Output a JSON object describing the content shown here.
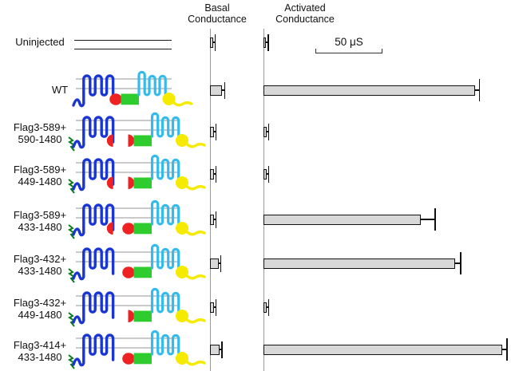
{
  "headers": {
    "basal_line1": "Basal",
    "basal_line2": "Conductance",
    "activated_line1": "Activated",
    "activated_line2": "Conductance"
  },
  "scale_bar": {
    "label": "50 μS",
    "value_uS": 50
  },
  "rows": [
    {
      "id": "uninjected",
      "label_lines": [
        "Uninjected"
      ],
      "cartoon": {
        "type": "membrane-only"
      },
      "basal": {
        "value_uS": 2.5,
        "error_uS": 1.5
      },
      "activated": {
        "value_uS": 2,
        "error_uS": 1.5
      }
    },
    {
      "id": "wt",
      "label_lines": [
        "WT"
      ],
      "cartoon": {
        "type": "construct",
        "flag_tag": false,
        "split": false,
        "nbd1_n_half": false,
        "nbd1_c_piece": "full"
      },
      "basal": {
        "value_uS": 9,
        "error_uS": 2
      },
      "activated": {
        "value_uS": 158,
        "error_uS": 3
      }
    },
    {
      "id": "flag3-589_590-1480",
      "label_lines": [
        "Flag3-589+",
        "590-1480"
      ],
      "cartoon": {
        "type": "construct",
        "flag_tag": true,
        "split": true,
        "nbd1_n_half": true,
        "nbd1_c_piece": "half"
      },
      "basal": {
        "value_uS": 3,
        "error_uS": 1.5
      },
      "activated": {
        "value_uS": 2.5,
        "error_uS": 1.5
      }
    },
    {
      "id": "flag3-589_449-1480",
      "label_lines": [
        "Flag3-589+",
        "449-1480"
      ],
      "cartoon": {
        "type": "construct",
        "flag_tag": true,
        "split": true,
        "nbd1_n_half": true,
        "nbd1_c_piece": "half"
      },
      "basal": {
        "value_uS": 3,
        "error_uS": 1.5
      },
      "activated": {
        "value_uS": 2.5,
        "error_uS": 1.5
      }
    },
    {
      "id": "flag3-589_433-1480",
      "label_lines": [
        "Flag3-589+",
        "433-1480"
      ],
      "cartoon": {
        "type": "construct",
        "flag_tag": true,
        "split": true,
        "nbd1_n_half": true,
        "nbd1_c_piece": "full"
      },
      "basal": {
        "value_uS": 3,
        "error_uS": 1.5
      },
      "activated": {
        "value_uS": 117,
        "error_uS": 11
      }
    },
    {
      "id": "flag3-432_433-1480",
      "label_lines": [
        "Flag3-432+",
        "433-1480"
      ],
      "cartoon": {
        "type": "construct",
        "flag_tag": true,
        "split": true,
        "nbd1_n_half": false,
        "nbd1_c_piece": "full"
      },
      "basal": {
        "value_uS": 6.5,
        "error_uS": 1.5
      },
      "activated": {
        "value_uS": 143,
        "error_uS": 4
      }
    },
    {
      "id": "flag3-432_449-1480",
      "label_lines": [
        "Flag3-432+",
        "449-1480"
      ],
      "cartoon": {
        "type": "construct",
        "flag_tag": true,
        "split": true,
        "nbd1_n_half": false,
        "nbd1_c_piece": "half"
      },
      "basal": {
        "value_uS": 3,
        "error_uS": 1.5
      },
      "activated": {
        "value_uS": 2.5,
        "error_uS": 1.5
      }
    },
    {
      "id": "flag3-414_433-1480",
      "label_lines": [
        "Flag3-414+",
        "433-1480"
      ],
      "cartoon": {
        "type": "construct",
        "flag_tag": true,
        "split": true,
        "nbd1_n_half": false,
        "nbd1_c_piece": "full"
      },
      "basal": {
        "value_uS": 7,
        "error_uS": 2
      },
      "activated": {
        "value_uS": 178,
        "error_uS": 3.5
      }
    }
  ],
  "colors": {
    "tmd1_blue": "#1a35d6",
    "tmd2_cyan": "#33bbee",
    "nbd1_red": "#ee2222",
    "r_domain_green": "#2ecc2e",
    "nbd2_yellow": "#f5ea00",
    "flag_tag_green": "#0a7d1e",
    "membrane_gray": "#aaaaaa",
    "bar_fill": "#d8d8d8",
    "bar_border": "#111111",
    "axis_gray": "#999999"
  },
  "chart_data": {
    "type": "bar",
    "orientation": "horizontal",
    "title": "",
    "categories": [
      "Uninjected",
      "WT",
      "Flag3-589+ 590-1480",
      "Flag3-589+ 449-1480",
      "Flag3-589+ 433-1480",
      "Flag3-432+ 433-1480",
      "Flag3-432+ 449-1480",
      "Flag3-414+ 433-1480"
    ],
    "series": [
      {
        "name": "Basal Conductance",
        "unit": "μS",
        "values": [
          2.5,
          9,
          3,
          3,
          3,
          6.5,
          3,
          7
        ],
        "errors": [
          1.5,
          2,
          1.5,
          1.5,
          1.5,
          1.5,
          1.5,
          2
        ]
      },
      {
        "name": "Activated Conductance",
        "unit": "μS",
        "values": [
          2,
          158,
          2.5,
          2.5,
          117,
          143,
          2.5,
          178
        ],
        "errors": [
          1.5,
          3,
          1.5,
          1.5,
          11,
          4,
          1.5,
          3.5
        ]
      }
    ],
    "scale_bar": {
      "label": "50 μS",
      "value": 50
    },
    "grid": false,
    "legend_position": "column-headers"
  }
}
